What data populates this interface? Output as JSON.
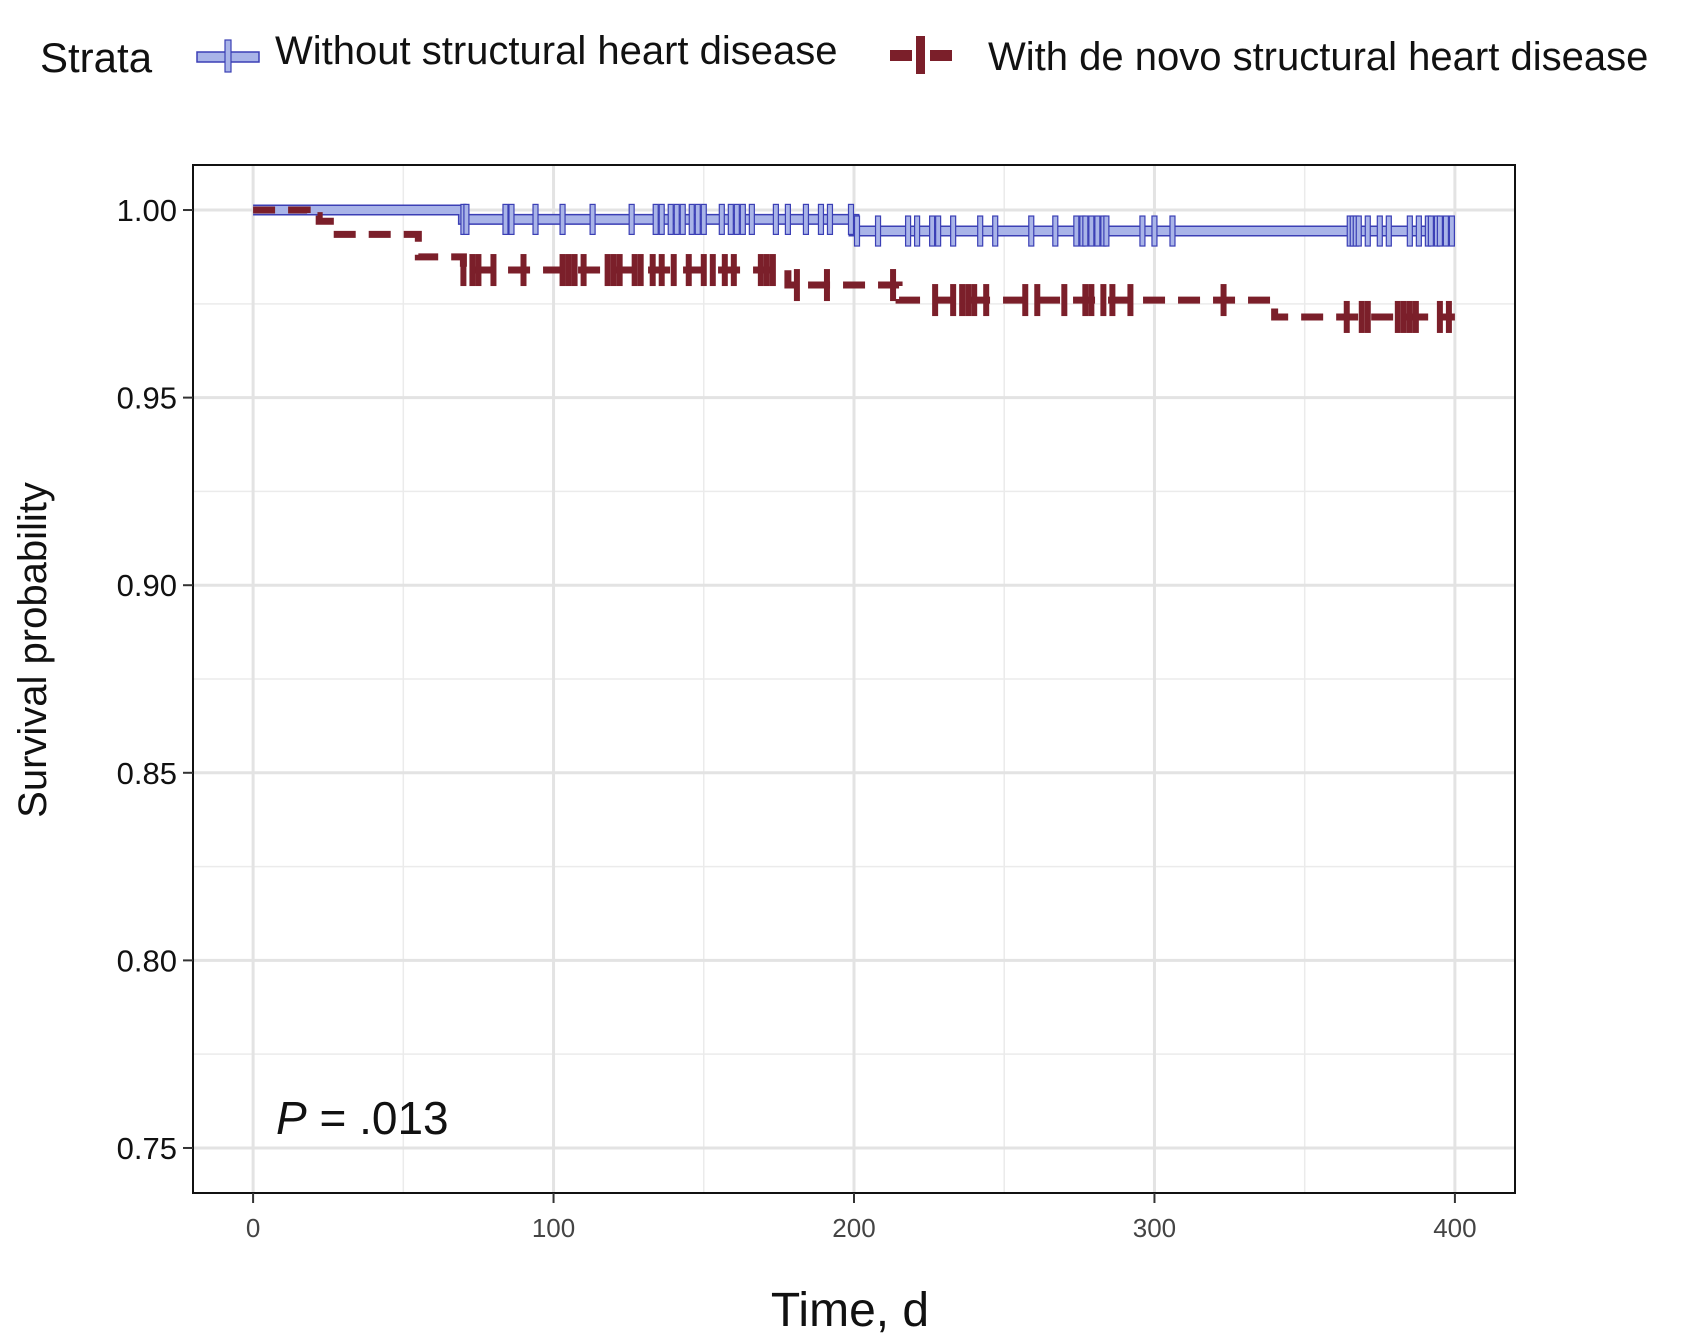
{
  "chart_data": {
    "type": "line",
    "subtype": "kaplan-meier step",
    "title": "",
    "xlabel": "Time, d",
    "ylabel": "Survival probability",
    "xlim": [
      -20,
      420
    ],
    "ylim": [
      0.738,
      1.012
    ],
    "x_ticks": [
      0,
      100,
      200,
      300,
      400
    ],
    "x_tick_labels": [
      "0",
      "100",
      "200",
      "300",
      "400"
    ],
    "y_ticks": [
      0.75,
      0.8,
      0.85,
      0.9,
      0.95,
      1.0
    ],
    "y_tick_labels": [
      "0.75",
      "0.80",
      "0.85",
      "0.90",
      "0.95",
      "1.00"
    ],
    "grid": true,
    "legend": {
      "title": "Strata",
      "position": "top",
      "entries": [
        "Without structural heart disease",
        "With de novo structural heart disease"
      ]
    },
    "annotation": {
      "p_label": "P",
      "p_value": " = .013"
    },
    "series": [
      {
        "name": "Without structural heart disease",
        "color": "#a9b4e8",
        "edge_color": "#3b3fb5",
        "line_style": "solid",
        "steps": [
          [
            0,
            1.0
          ],
          [
            70,
            0.9975
          ],
          [
            200,
            0.9944
          ],
          [
            400,
            0.9944
          ]
        ],
        "censor_times": [
          70,
          71,
          84,
          86,
          94,
          103,
          113,
          126,
          134,
          136,
          139,
          141,
          143,
          146,
          148,
          150,
          156,
          159,
          161,
          163,
          166,
          174,
          178,
          184,
          189,
          192,
          199,
          201,
          208,
          218,
          221,
          226,
          228,
          233,
          242,
          247,
          259,
          267,
          274,
          276,
          277,
          279,
          281,
          283,
          284,
          296,
          300,
          306,
          365,
          366,
          367,
          368,
          371,
          375,
          378,
          385,
          388,
          391,
          392,
          394,
          395,
          397,
          399
        ]
      },
      {
        "name": "With de novo structural heart disease",
        "color": "#7b1f2a",
        "line_style": "dashed",
        "steps": [
          [
            0,
            1.0
          ],
          [
            18,
            0.9985
          ],
          [
            22,
            0.997
          ],
          [
            28,
            0.9935
          ],
          [
            55,
            0.9875
          ],
          [
            70,
            0.984
          ],
          [
            178,
            0.98
          ],
          [
            215,
            0.976
          ],
          [
            340,
            0.9715
          ],
          [
            400,
            0.9715
          ]
        ],
        "censor_times": [
          70,
          73,
          75,
          80,
          90,
          103,
          105,
          107,
          110,
          118,
          120,
          122,
          127,
          129,
          133,
          136,
          140,
          145,
          150,
          153,
          157,
          160,
          169,
          171,
          173,
          181,
          191,
          213,
          227,
          233,
          236,
          238,
          240,
          244,
          257,
          261,
          270,
          277,
          279,
          283,
          286,
          292,
          323,
          364,
          369,
          371,
          381,
          383,
          385,
          387,
          395,
          398
        ]
      }
    ]
  }
}
